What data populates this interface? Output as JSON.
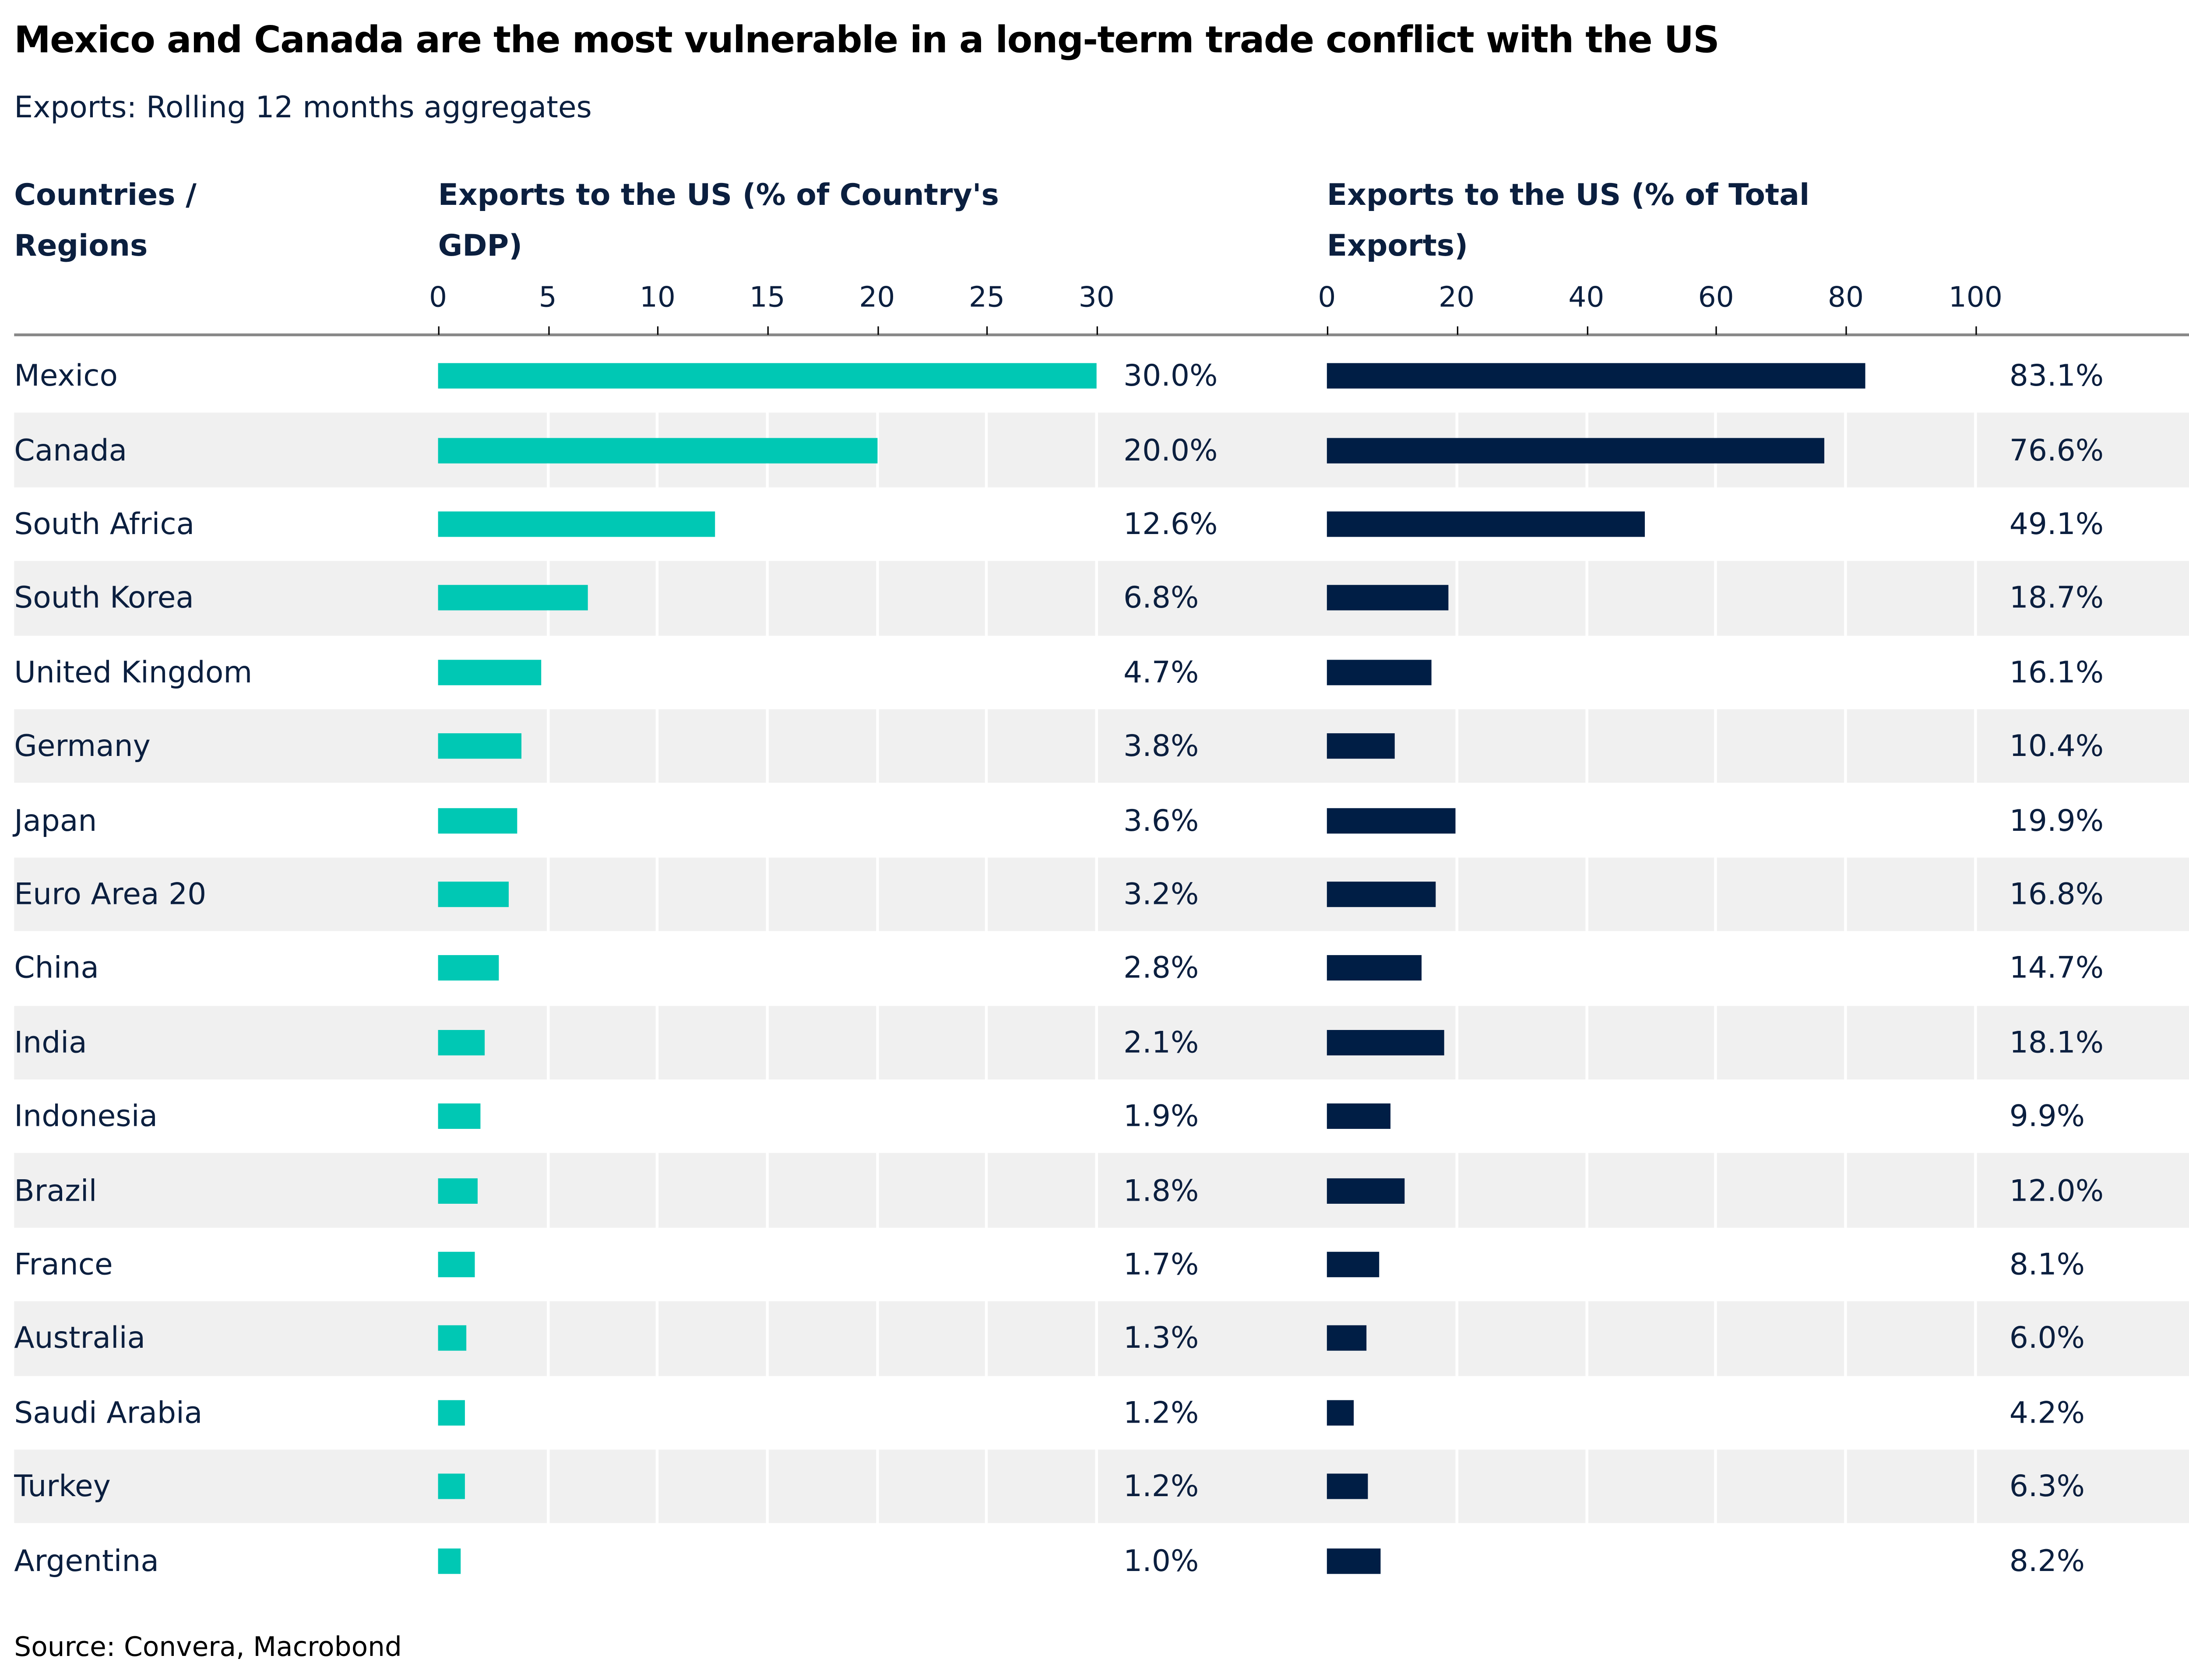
{
  "title": "Mexico and Canada are the most vulnerable in a long-term trade conflict with the US",
  "subtitle": "Exports: Rolling 12 months aggregates",
  "source": "Source: Convera, Macrobond",
  "colors": {
    "gdp_bar": "#00C8B4",
    "exports_bar": "#001E45",
    "text": "#0b1f3f",
    "band": "#f0f0f0"
  },
  "chart_data": {
    "type": "bar",
    "orientation": "horizontal",
    "row_header": "Countries / Regions",
    "categories": [
      "Mexico",
      "Canada",
      "South Africa",
      "South Korea",
      "United Kingdom",
      "Germany",
      "Japan",
      "Euro Area 20",
      "China",
      "India",
      "Indonesia",
      "Brazil",
      "France",
      "Australia",
      "Saudi Arabia",
      "Turkey",
      "Argentina"
    ],
    "panels": [
      {
        "title": "Exports to the US (% of Country's GDP)",
        "xlim": [
          0,
          30
        ],
        "ticks": [
          "0",
          "5",
          "10",
          "15",
          "20",
          "25",
          "30"
        ],
        "values": [
          30.0,
          20.0,
          12.6,
          6.8,
          4.7,
          3.8,
          3.6,
          3.2,
          2.8,
          2.1,
          1.9,
          1.8,
          1.7,
          1.3,
          1.2,
          1.2,
          1.0
        ],
        "labels": [
          "30.0%",
          "20.0%",
          "12.6%",
          "6.8%",
          "4.7%",
          "3.8%",
          "3.6%",
          "3.2%",
          "2.8%",
          "2.1%",
          "1.9%",
          "1.8%",
          "1.7%",
          "1.3%",
          "1.2%",
          "1.2%",
          "1.0%"
        ]
      },
      {
        "title": "Exports to the US (% of Total Exports)",
        "xlim": [
          0,
          100
        ],
        "ticks": [
          "0",
          "20",
          "40",
          "60",
          "80",
          "100"
        ],
        "values": [
          83.1,
          76.6,
          49.1,
          18.7,
          16.1,
          10.4,
          19.9,
          16.8,
          14.7,
          18.1,
          9.9,
          12.0,
          8.1,
          6.0,
          4.2,
          6.3,
          8.2
        ],
        "labels": [
          "83.1%",
          "76.6%",
          "49.1%",
          "18.7%",
          "16.1%",
          "10.4%",
          "19.9%",
          "16.8%",
          "14.7%",
          "18.1%",
          "9.9%",
          "12.0%",
          "8.1%",
          "6.0%",
          "4.2%",
          "6.3%",
          "8.2%"
        ]
      }
    ],
    "grid": true,
    "legend": "none"
  }
}
